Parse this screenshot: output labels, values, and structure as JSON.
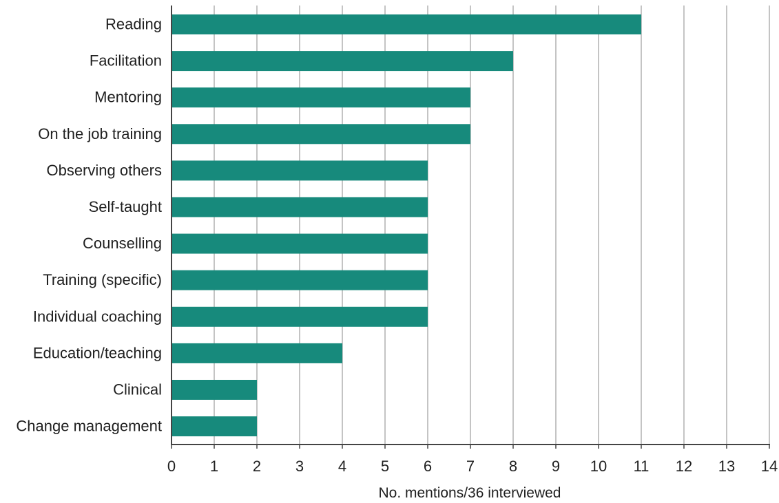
{
  "chart_data": {
    "type": "bar",
    "orientation": "horizontal",
    "categories": [
      "Reading",
      "Facilitation",
      "Mentoring",
      "On the job training",
      "Observing others",
      "Self-taught",
      "Counselling",
      "Training (specific)",
      "Individual coaching",
      "Education/teaching",
      "Clinical",
      "Change management"
    ],
    "values": [
      11,
      8,
      7,
      7,
      6,
      6,
      6,
      6,
      6,
      4,
      2,
      2
    ],
    "xlabel": "No. mentions/36 interviewed",
    "ylabel": "",
    "xlim": [
      0,
      14
    ],
    "xticks": [
      "0",
      "1",
      "2",
      "3",
      "4",
      "5",
      "6",
      "7",
      "8",
      "9",
      "10",
      "11",
      "12",
      "13",
      "14"
    ],
    "grid": "vertical",
    "bar_color": "#178a7c"
  }
}
